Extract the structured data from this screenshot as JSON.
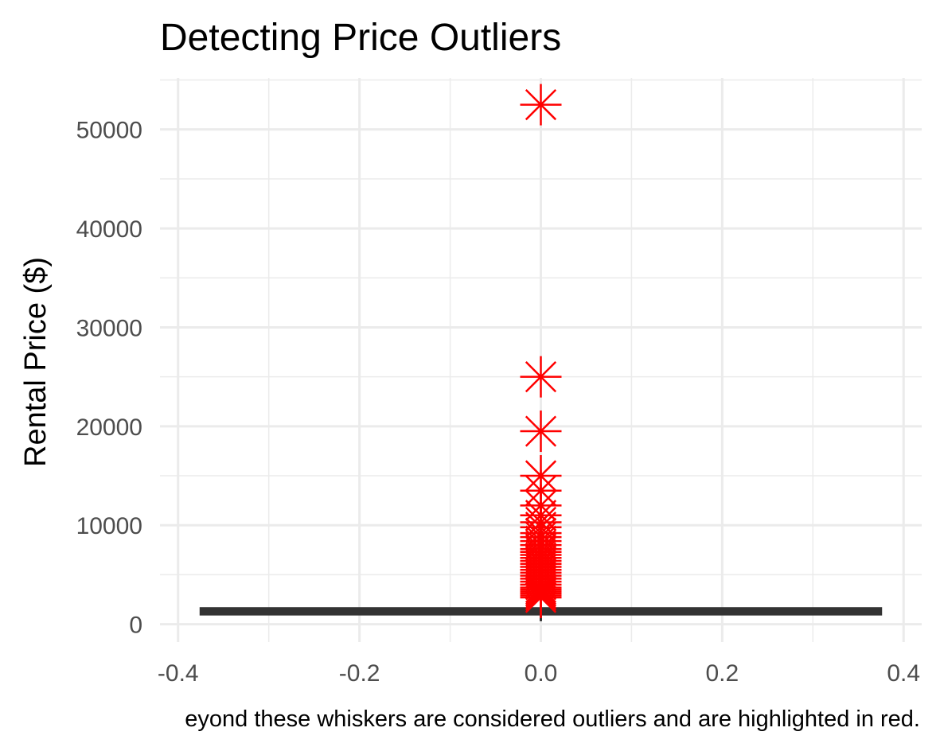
{
  "chart_data": {
    "type": "box",
    "title": "Detecting Price Outliers",
    "xlabel": "",
    "ylabel": "Rental Price ($)",
    "caption": "eyond these whiskers are considered outliers and are highlighted in red.",
    "xlim": [
      -0.42,
      0.42
    ],
    "ylim": [
      -1800,
      55200
    ],
    "x_ticks": [
      -0.4,
      -0.2,
      0.0,
      0.2,
      0.4
    ],
    "x_tick_labels": [
      "-0.4",
      "-0.2",
      "0.0",
      "0.2",
      "0.4"
    ],
    "y_ticks": [
      0,
      10000,
      20000,
      30000,
      40000,
      50000
    ],
    "y_tick_labels": [
      "0",
      "10000",
      "20000",
      "30000",
      "40000",
      "50000"
    ],
    "grid": true,
    "box": {
      "x": 0.0,
      "x_range": [
        -0.375,
        0.375
      ],
      "whisker_low": 300,
      "q1": 1000,
      "median": 1300,
      "q3": 1600,
      "whisker_high": 2500,
      "color": "#333333"
    },
    "outliers": {
      "color": "#ff0000",
      "marker": "asterisk",
      "x": 0.0,
      "values": [
        52500,
        25000,
        19500,
        15000,
        13500,
        12000,
        11000,
        10300,
        9800,
        9200,
        8800,
        8400,
        8000,
        7600,
        7300,
        7000,
        6700,
        6400,
        6100,
        5800,
        5500,
        5200,
        4900,
        4600,
        4300,
        4000,
        3700,
        3500,
        3300,
        3100,
        2900,
        2700
      ]
    }
  }
}
